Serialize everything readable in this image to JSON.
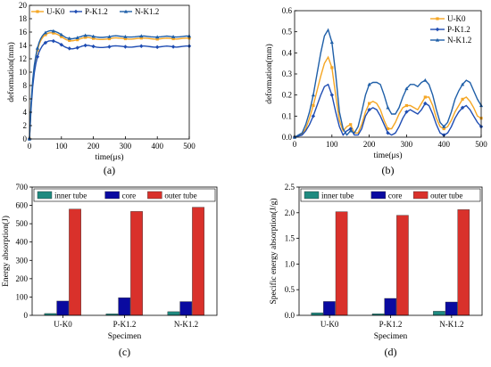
{
  "chart_data": [
    {
      "type": "line",
      "panel_label": "(a)",
      "xlabel": "time(μs)",
      "ylabel": "deformation(mm)",
      "xlim": [
        0,
        500
      ],
      "ylim": [
        0,
        20
      ],
      "xticks": [
        0,
        100,
        200,
        300,
        400,
        500
      ],
      "yticks": [
        0,
        2,
        4,
        6,
        8,
        10,
        12,
        14,
        16,
        18,
        20
      ],
      "legend_position": "top",
      "series": [
        {
          "name": "U-K0",
          "color": "#f5a623",
          "x": [
            0,
            5,
            10,
            15,
            20,
            25,
            30,
            35,
            40,
            45,
            50,
            55,
            60,
            65,
            70,
            75,
            80,
            85,
            90,
            95,
            100,
            105,
            110,
            115,
            120,
            125,
            130,
            135,
            140,
            145,
            150,
            155,
            160,
            165,
            170,
            175,
            180,
            185,
            190,
            195,
            200,
            210,
            220,
            230,
            240,
            250,
            260,
            270,
            280,
            290,
            300,
            310,
            320,
            330,
            340,
            350,
            360,
            370,
            380,
            390,
            400,
            410,
            420,
            430,
            440,
            450,
            460,
            470,
            480,
            490,
            500
          ],
          "y": [
            0,
            5.0,
            8.5,
            10.7,
            12.2,
            13.3,
            14.1,
            14.7,
            15.1,
            15.4,
            15.6,
            15.75,
            15.85,
            15.9,
            15.9,
            15.85,
            15.8,
            15.7,
            15.6,
            15.45,
            15.3,
            15.15,
            15.0,
            14.85,
            14.8,
            14.75,
            14.7,
            14.7,
            14.75,
            14.8,
            14.85,
            14.95,
            15.0,
            15.1,
            15.15,
            15.2,
            15.2,
            15.2,
            15.15,
            15.1,
            15.05,
            14.95,
            14.9,
            14.9,
            14.95,
            15.0,
            15.1,
            15.15,
            15.1,
            15.05,
            15.0,
            14.95,
            14.95,
            15.0,
            15.05,
            15.1,
            15.1,
            15.05,
            15.0,
            14.95,
            14.95,
            15.0,
            15.05,
            15.1,
            15.05,
            15.0,
            14.95,
            15.0,
            15.05,
            15.1,
            15.1
          ]
        },
        {
          "name": "P-K1.2",
          "color": "#1f4db3",
          "x": [
            0,
            5,
            10,
            15,
            20,
            25,
            30,
            35,
            40,
            45,
            50,
            55,
            60,
            65,
            70,
            75,
            80,
            85,
            90,
            95,
            100,
            105,
            110,
            115,
            120,
            125,
            130,
            135,
            140,
            145,
            150,
            155,
            160,
            165,
            170,
            175,
            180,
            185,
            190,
            195,
            200,
            210,
            220,
            230,
            240,
            250,
            260,
            270,
            280,
            290,
            300,
            310,
            320,
            330,
            340,
            350,
            360,
            370,
            380,
            390,
            400,
            410,
            420,
            430,
            440,
            450,
            460,
            470,
            480,
            490,
            500
          ],
          "y": [
            0,
            4.5,
            7.8,
            9.9,
            11.3,
            12.3,
            13.0,
            13.5,
            13.9,
            14.2,
            14.4,
            14.55,
            14.65,
            14.7,
            14.7,
            14.65,
            14.6,
            14.5,
            14.4,
            14.25,
            14.1,
            13.95,
            13.8,
            13.7,
            13.6,
            13.55,
            13.5,
            13.5,
            13.55,
            13.6,
            13.65,
            13.75,
            13.8,
            13.9,
            13.95,
            14.0,
            14.0,
            14.0,
            13.95,
            13.9,
            13.85,
            13.75,
            13.7,
            13.7,
            13.75,
            13.8,
            13.9,
            13.95,
            13.9,
            13.85,
            13.8,
            13.75,
            13.75,
            13.8,
            13.85,
            13.9,
            13.9,
            13.85,
            13.8,
            13.75,
            13.75,
            13.8,
            13.85,
            13.9,
            13.85,
            13.8,
            13.75,
            13.8,
            13.85,
            13.9,
            13.9
          ]
        },
        {
          "name": "N-K1.2",
          "color": "#1f5fa8",
          "x": [
            0,
            5,
            10,
            15,
            20,
            25,
            30,
            35,
            40,
            45,
            50,
            55,
            60,
            65,
            70,
            75,
            80,
            85,
            90,
            95,
            100,
            105,
            110,
            115,
            120,
            125,
            130,
            135,
            140,
            145,
            150,
            155,
            160,
            165,
            170,
            175,
            180,
            185,
            190,
            195,
            200,
            210,
            220,
            230,
            240,
            250,
            260,
            270,
            280,
            290,
            300,
            310,
            320,
            330,
            340,
            350,
            360,
            370,
            380,
            390,
            400,
            410,
            420,
            430,
            440,
            450,
            460,
            470,
            480,
            490,
            500
          ],
          "y": [
            0,
            5.2,
            8.8,
            11.0,
            12.5,
            13.6,
            14.4,
            15.0,
            15.4,
            15.7,
            15.9,
            16.05,
            16.15,
            16.2,
            16.2,
            16.15,
            16.1,
            16.0,
            15.9,
            15.75,
            15.6,
            15.45,
            15.3,
            15.15,
            15.1,
            15.05,
            15.0,
            15.0,
            15.05,
            15.1,
            15.15,
            15.25,
            15.3,
            15.4,
            15.45,
            15.5,
            15.5,
            15.5,
            15.45,
            15.4,
            15.35,
            15.25,
            15.2,
            15.2,
            15.25,
            15.3,
            15.4,
            15.45,
            15.4,
            15.35,
            15.3,
            15.25,
            15.25,
            15.3,
            15.35,
            15.4,
            15.4,
            15.35,
            15.3,
            15.25,
            15.25,
            15.3,
            15.35,
            15.4,
            15.35,
            15.3,
            15.25,
            15.3,
            15.35,
            15.4,
            15.4
          ]
        }
      ]
    },
    {
      "type": "line",
      "panel_label": "(b)",
      "xlabel": "time(μs)",
      "ylabel": "deformation(mm)",
      "xlim": [
        0,
        500
      ],
      "ylim": [
        0,
        0.6
      ],
      "xticks": [
        0,
        100,
        200,
        300,
        400,
        500
      ],
      "yticks": [
        0.0,
        0.1,
        0.2,
        0.3,
        0.4,
        0.5,
        0.6
      ],
      "legend_position": "top-right",
      "series": [
        {
          "name": "U-K0",
          "color": "#f5a623",
          "x": [
            0,
            10,
            20,
            30,
            40,
            50,
            60,
            70,
            80,
            90,
            100,
            110,
            120,
            130,
            140,
            150,
            160,
            170,
            180,
            190,
            200,
            210,
            220,
            230,
            240,
            250,
            260,
            270,
            280,
            290,
            300,
            310,
            320,
            330,
            340,
            350,
            360,
            370,
            380,
            390,
            400,
            410,
            420,
            430,
            440,
            450,
            460,
            470,
            480,
            490,
            500
          ],
          "y": [
            0,
            0.005,
            0.015,
            0.04,
            0.09,
            0.15,
            0.22,
            0.29,
            0.35,
            0.38,
            0.33,
            0.2,
            0.08,
            0.03,
            0.05,
            0.06,
            0.02,
            0.02,
            0.06,
            0.12,
            0.16,
            0.17,
            0.16,
            0.13,
            0.08,
            0.04,
            0.04,
            0.07,
            0.11,
            0.14,
            0.15,
            0.15,
            0.14,
            0.13,
            0.16,
            0.19,
            0.19,
            0.15,
            0.09,
            0.05,
            0.04,
            0.05,
            0.08,
            0.12,
            0.15,
            0.18,
            0.19,
            0.17,
            0.14,
            0.1,
            0.09
          ]
        },
        {
          "name": "P-K1.2",
          "color": "#1f4db3",
          "x": [
            0,
            10,
            20,
            30,
            40,
            50,
            60,
            70,
            80,
            90,
            100,
            110,
            120,
            130,
            140,
            150,
            160,
            170,
            180,
            190,
            200,
            210,
            220,
            230,
            240,
            250,
            260,
            270,
            280,
            290,
            300,
            310,
            320,
            330,
            340,
            350,
            360,
            370,
            380,
            390,
            400,
            410,
            420,
            430,
            440,
            450,
            460,
            470,
            480,
            490,
            500
          ],
          "y": [
            0,
            0.005,
            0.01,
            0.03,
            0.06,
            0.1,
            0.15,
            0.2,
            0.24,
            0.25,
            0.2,
            0.12,
            0.05,
            0.01,
            0.03,
            0.04,
            0.01,
            0.01,
            0.04,
            0.1,
            0.13,
            0.14,
            0.13,
            0.1,
            0.06,
            0.02,
            0.01,
            0.02,
            0.05,
            0.09,
            0.12,
            0.13,
            0.12,
            0.11,
            0.13,
            0.16,
            0.15,
            0.11,
            0.06,
            0.02,
            0.01,
            0.02,
            0.05,
            0.09,
            0.12,
            0.14,
            0.15,
            0.13,
            0.1,
            0.07,
            0.05
          ]
        },
        {
          "name": "N-K1.2",
          "color": "#1f5fa8",
          "x": [
            0,
            10,
            20,
            30,
            40,
            50,
            60,
            70,
            80,
            90,
            100,
            110,
            120,
            130,
            140,
            150,
            160,
            170,
            180,
            190,
            200,
            210,
            220,
            230,
            240,
            250,
            260,
            270,
            280,
            290,
            300,
            310,
            320,
            330,
            340,
            350,
            360,
            370,
            380,
            390,
            400,
            410,
            420,
            430,
            440,
            450,
            460,
            470,
            480,
            490,
            500
          ],
          "y": [
            0,
            0.01,
            0.02,
            0.06,
            0.12,
            0.2,
            0.3,
            0.4,
            0.48,
            0.51,
            0.45,
            0.3,
            0.12,
            0.04,
            0.01,
            0.03,
            0.02,
            0.05,
            0.12,
            0.2,
            0.25,
            0.26,
            0.26,
            0.25,
            0.2,
            0.14,
            0.11,
            0.11,
            0.14,
            0.19,
            0.23,
            0.25,
            0.25,
            0.24,
            0.26,
            0.27,
            0.25,
            0.2,
            0.13,
            0.07,
            0.05,
            0.07,
            0.12,
            0.18,
            0.22,
            0.25,
            0.27,
            0.26,
            0.22,
            0.18,
            0.15
          ]
        }
      ]
    },
    {
      "type": "bar",
      "panel_label": "(c)",
      "xlabel": "Specimen",
      "ylabel": "Energy absorption(J)",
      "categories": [
        "U-K0",
        "P-K1.2",
        "N-K1.2"
      ],
      "ylim": [
        0,
        700
      ],
      "yticks": [
        0,
        100,
        200,
        300,
        400,
        500,
        600,
        700
      ],
      "legend_position": "top",
      "series": [
        {
          "name": "inner tube",
          "color": "#1f8a80",
          "values": [
            10,
            8,
            20
          ]
        },
        {
          "name": "core",
          "color": "#0a0aa0",
          "values": [
            78,
            96,
            75
          ]
        },
        {
          "name": "outer tube",
          "color": "#d9312b",
          "values": [
            580,
            567,
            590
          ]
        }
      ]
    },
    {
      "type": "bar",
      "panel_label": "(d)",
      "xlabel": "Specimen",
      "ylabel": "Specific energy absorption(J/g)",
      "categories": [
        "U-K0",
        "P-K1.2",
        "N-K1.2"
      ],
      "ylim": [
        0,
        2.5
      ],
      "yticks": [
        0.0,
        0.5,
        1.0,
        1.5,
        2.0,
        2.5
      ],
      "legend_position": "top",
      "series": [
        {
          "name": "inner tube",
          "color": "#1f8a80",
          "values": [
            0.05,
            0.03,
            0.08
          ]
        },
        {
          "name": "core",
          "color": "#0a0aa0",
          "values": [
            0.27,
            0.33,
            0.26
          ]
        },
        {
          "name": "outer tube",
          "color": "#d9312b",
          "values": [
            2.02,
            1.95,
            2.06
          ]
        }
      ]
    }
  ]
}
